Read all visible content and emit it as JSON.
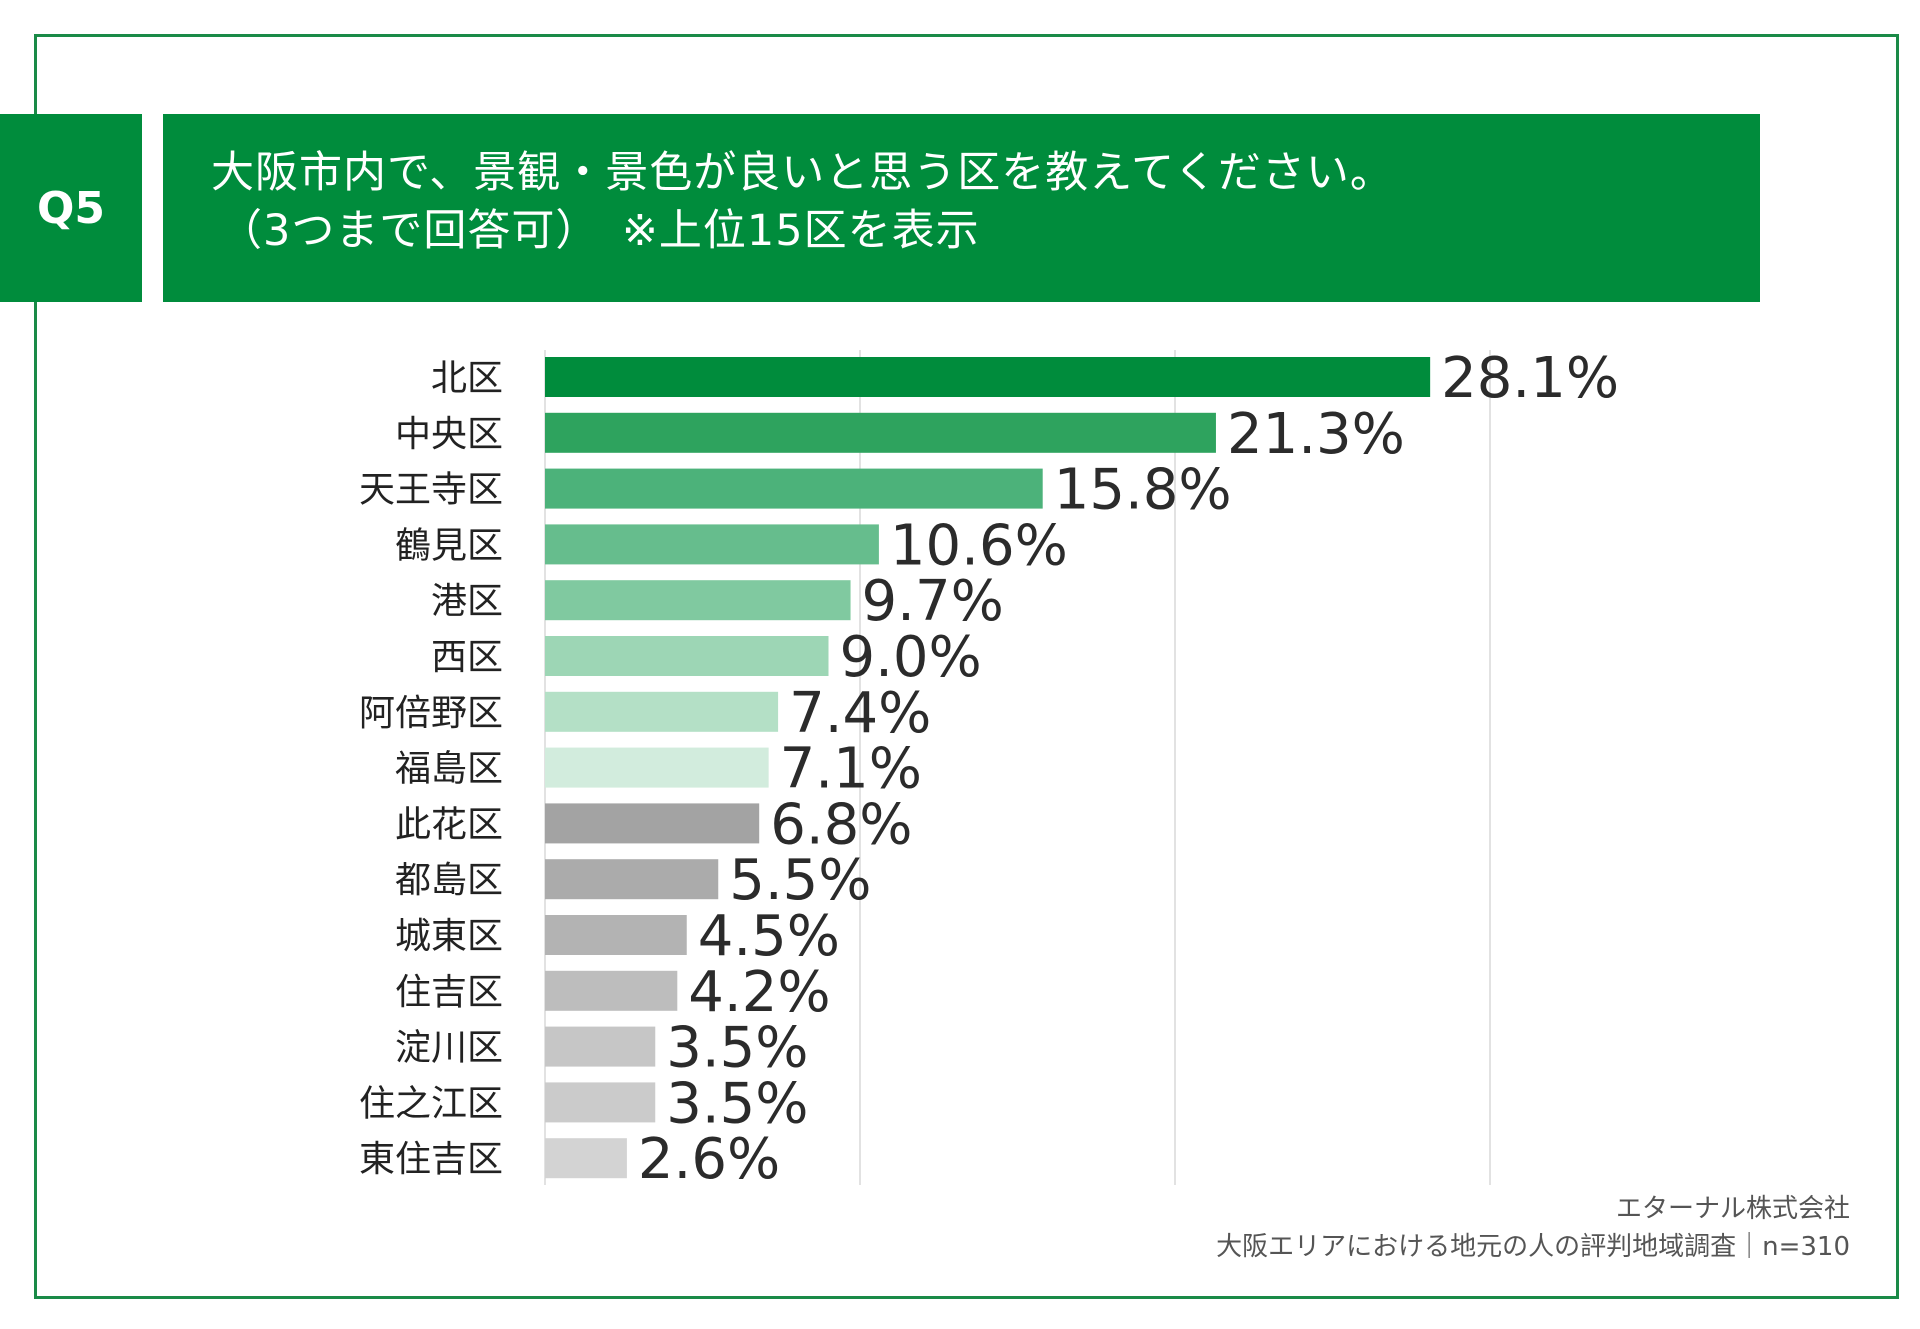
{
  "question": {
    "badge": "Q5",
    "line1": "大阪市内で、景観・景色が良いと思う区を教えてください。",
    "line2": "（3つまで回答可）　※上位15区を表示"
  },
  "colors": {
    "frame": "#1a8a47",
    "header_bg": "#008c3c",
    "bar_colors": [
      "#008c3c",
      "#2ea35e",
      "#4cb27a",
      "#66bd8d",
      "#80c9a0",
      "#9dd6b5",
      "#b4e0c6",
      "#d2ecdd",
      "#a3a3a3",
      "#ababab",
      "#b3b3b3",
      "#bdbdbd",
      "#c6c6c6",
      "#cbcbcb",
      "#d3d3d3"
    ]
  },
  "chart_data": {
    "type": "bar",
    "orientation": "horizontal",
    "title": "大阪市内で、景観・景色が良いと思う区を教えてください。",
    "xlabel": "",
    "ylabel": "",
    "xlim": [
      0,
      30
    ],
    "gridlines": [
      0,
      10,
      20,
      30
    ],
    "unit": "%",
    "categories": [
      "北区",
      "中央区",
      "天王寺区",
      "鶴見区",
      "港区",
      "西区",
      "阿倍野区",
      "福島区",
      "此花区",
      "都島区",
      "城東区",
      "住吉区",
      "淀川区",
      "住之江区",
      "東住吉区"
    ],
    "values": [
      28.1,
      21.3,
      15.8,
      10.6,
      9.7,
      9.0,
      7.4,
      7.1,
      6.8,
      5.5,
      4.5,
      4.2,
      3.5,
      3.5,
      2.6
    ],
    "labels": [
      "28.1%",
      "21.3%",
      "15.8%",
      "10.6%",
      "9.7%",
      "9.0%",
      "7.4%",
      "7.1%",
      "6.8%",
      "5.5%",
      "4.5%",
      "4.2%",
      "3.5%",
      "3.5%",
      "2.6%"
    ]
  },
  "footer": {
    "company": "エターナル株式会社",
    "survey": "大阪エリアにおける地元の人の評判地域調査｜n=310"
  }
}
